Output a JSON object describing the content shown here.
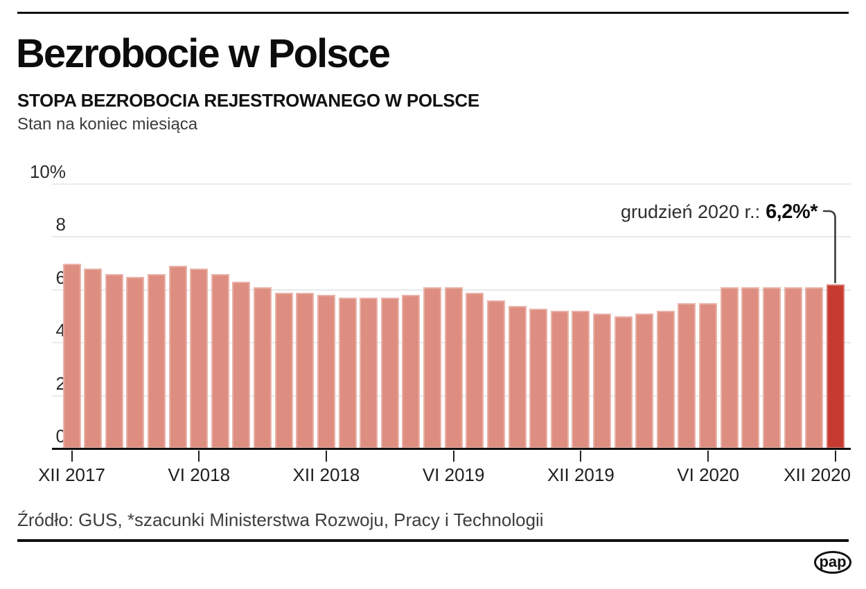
{
  "header": {
    "title": "Bezrobocie w Polsce",
    "subtitle": "STOPA BEZROBOCIA REJESTROWANEGO W POLSCE",
    "note": "Stan na koniec miesiąca"
  },
  "annotation": {
    "label": "grudzień 2020 r.:",
    "value": "6,2%*"
  },
  "footer": {
    "source": "Źródło: GUS, *szacunki Ministerstwa Rozwoju, Pracy i Technologii",
    "logo": "pap"
  },
  "colors": {
    "bar": "#de8e80",
    "bar_highlight": "#c63a2f",
    "gridline": "#e7ebec",
    "axis": "#101010"
  },
  "chart_data": {
    "type": "bar",
    "title": "STOPA BEZROBOCIA REJESTROWANEGO W POLSCE",
    "subtitle": "Stan na koniec miesiąca",
    "unit": "%",
    "ylim": [
      0,
      10
    ],
    "grid": true,
    "ytick_labels": [
      "0",
      "2",
      "4",
      "6",
      "8",
      "10%"
    ],
    "xtick_labels": [
      "XII 2017",
      "VI 2018",
      "XII 2018",
      "VI 2019",
      "XII 2019",
      "VI 2020",
      "XII 2020"
    ],
    "xtick_every": 6,
    "categories": [
      "XII 2017",
      "I 2018",
      "II 2018",
      "III 2018",
      "IV 2018",
      "V 2018",
      "VI 2018",
      "VII 2018",
      "VIII 2018",
      "IX 2018",
      "X 2018",
      "XI 2018",
      "XII 2018",
      "I 2019",
      "II 2019",
      "III 2019",
      "IV 2019",
      "V 2019",
      "VI 2019",
      "VII 2019",
      "VIII 2019",
      "IX 2019",
      "X 2019",
      "XI 2019",
      "XII 2019",
      "I 2020",
      "II 2020",
      "III 2020",
      "IV 2020",
      "V 2020",
      "VI 2020",
      "VII 2020",
      "VIII 2020",
      "IX 2020",
      "X 2020",
      "XI 2020",
      "XII 2020"
    ],
    "values": [
      7.0,
      6.8,
      6.6,
      6.5,
      6.6,
      6.9,
      6.8,
      6.6,
      6.3,
      6.1,
      5.9,
      5.9,
      5.8,
      5.7,
      5.7,
      5.7,
      5.8,
      6.1,
      6.1,
      5.9,
      5.6,
      5.4,
      5.3,
      5.2,
      5.2,
      5.1,
      5.0,
      5.1,
      5.2,
      5.5,
      5.5,
      6.1,
      6.1,
      6.1,
      6.1,
      6.1,
      6.2
    ],
    "highlight_index": 36,
    "highlight_annotation": "grudzień 2020 r.: 6,2%*",
    "legend": null
  }
}
